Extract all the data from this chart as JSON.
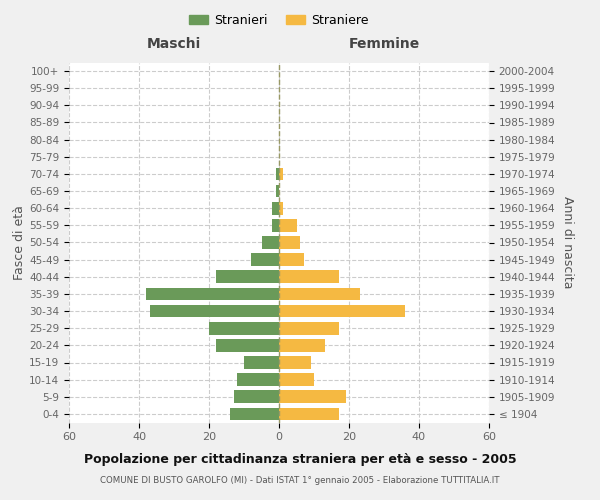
{
  "age_groups": [
    "100+",
    "95-99",
    "90-94",
    "85-89",
    "80-84",
    "75-79",
    "70-74",
    "65-69",
    "60-64",
    "55-59",
    "50-54",
    "45-49",
    "40-44",
    "35-39",
    "30-34",
    "25-29",
    "20-24",
    "15-19",
    "10-14",
    "5-9",
    "0-4"
  ],
  "birth_years": [
    "≤ 1904",
    "1905-1909",
    "1910-1914",
    "1915-1919",
    "1920-1924",
    "1925-1929",
    "1930-1934",
    "1935-1939",
    "1940-1944",
    "1945-1949",
    "1950-1954",
    "1955-1959",
    "1960-1964",
    "1965-1969",
    "1970-1974",
    "1975-1979",
    "1980-1984",
    "1985-1989",
    "1990-1994",
    "1995-1999",
    "2000-2004"
  ],
  "males": [
    0,
    0,
    0,
    0,
    0,
    0,
    1,
    1,
    2,
    2,
    5,
    8,
    18,
    38,
    37,
    20,
    18,
    10,
    12,
    13,
    14
  ],
  "females": [
    0,
    0,
    0,
    0,
    0,
    0,
    1,
    0,
    1,
    5,
    6,
    7,
    17,
    23,
    36,
    17,
    13,
    9,
    10,
    19,
    17
  ],
  "male_color": "#6a9a59",
  "female_color": "#f5b942",
  "background_color": "#f0f0f0",
  "plot_bg_color": "#ffffff",
  "grid_color": "#cccccc",
  "title": "Popolazione per cittadinanza straniera per età e sesso - 2005",
  "subtitle": "COMUNE DI BUSTO GAROLFO (MI) - Dati ISTAT 1° gennaio 2005 - Elaborazione TUTTITALIA.IT",
  "left_label": "Maschi",
  "right_label": "Femmine",
  "y_left_label": "Fasce di età",
  "y_right_label": "Anni di nascita",
  "legend_male": "Stranieri",
  "legend_female": "Straniere",
  "xlim": 60
}
